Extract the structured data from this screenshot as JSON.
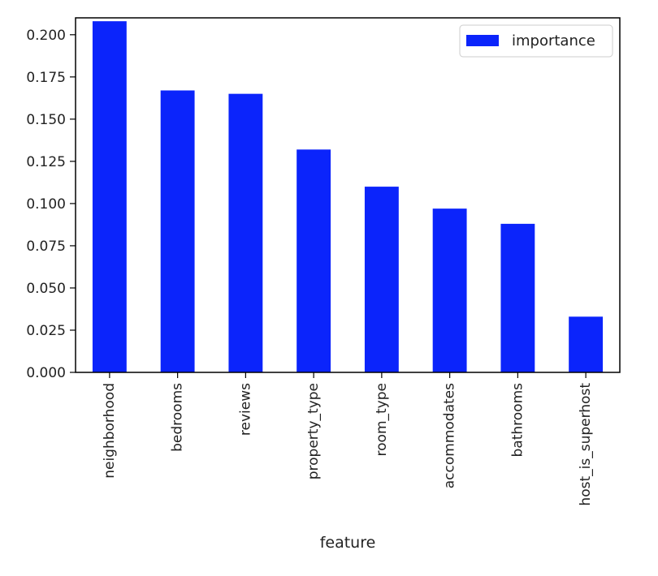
{
  "chart_data": {
    "type": "bar",
    "categories": [
      "neighborhood",
      "bedrooms",
      "reviews",
      "property_type",
      "room_type",
      "accommodates",
      "bathrooms",
      "host_is_superhost"
    ],
    "series": [
      {
        "name": "importance",
        "values": [
          0.208,
          0.167,
          0.165,
          0.132,
          0.11,
          0.097,
          0.088,
          0.033
        ],
        "color": "#0b24fb"
      }
    ],
    "title": "",
    "xlabel": "feature",
    "ylabel": "",
    "ylim": [
      0,
      0.21
    ],
    "yticks": [
      "0.000",
      "0.025",
      "0.050",
      "0.075",
      "0.100",
      "0.125",
      "0.150",
      "0.175",
      "0.200"
    ],
    "grid": false,
    "legend_position": "top-right"
  }
}
